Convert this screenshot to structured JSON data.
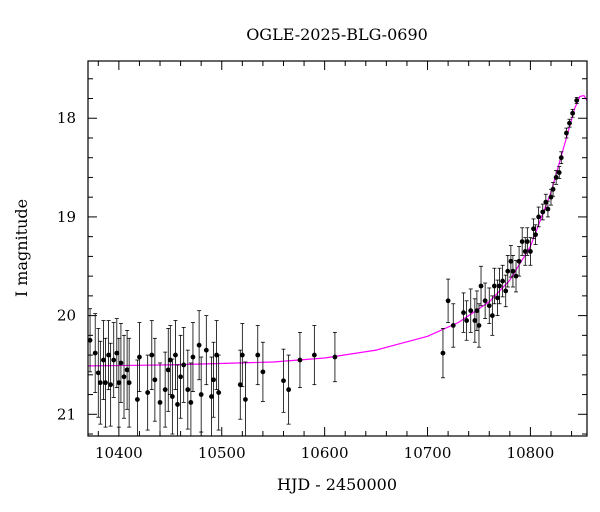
{
  "chart_data": {
    "type": "scatter",
    "title": "OGLE-2025-BLG-0690",
    "xlabel": "HJD - 2450000",
    "ylabel": "I magnitude",
    "xlim": [
      10370,
      10855
    ],
    "ylim": [
      21.22,
      17.42
    ],
    "y_inverted": true,
    "grid": false,
    "legend": "none",
    "x_ticks": [
      10400,
      10500,
      10600,
      10700,
      10800
    ],
    "y_ticks": [
      18,
      19,
      20,
      21
    ],
    "colors": {
      "points": "#000000",
      "model": "#ff00ff"
    },
    "series": [
      {
        "type": "scatter",
        "points": [
          {
            "x": 10372,
            "y": 20.25,
            "err": 0.32
          },
          {
            "x": 10377,
            "y": 20.38,
            "err": 0.4
          },
          {
            "x": 10380,
            "y": 20.58,
            "err": 0.45
          },
          {
            "x": 10382,
            "y": 20.68,
            "err": 0.42
          },
          {
            "x": 10385,
            "y": 20.45,
            "err": 0.4
          },
          {
            "x": 10387,
            "y": 20.68,
            "err": 0.45
          },
          {
            "x": 10390,
            "y": 20.4,
            "err": 0.35
          },
          {
            "x": 10392,
            "y": 20.7,
            "err": 0.42
          },
          {
            "x": 10395,
            "y": 20.45,
            "err": 0.38
          },
          {
            "x": 10398,
            "y": 20.38,
            "err": 0.35
          },
          {
            "x": 10400,
            "y": 20.68,
            "err": 0.45
          },
          {
            "x": 10402,
            "y": 20.48,
            "err": 0.4
          },
          {
            "x": 10405,
            "y": 20.62,
            "err": 0.42
          },
          {
            "x": 10408,
            "y": 20.55,
            "err": 0.4
          },
          {
            "x": 10410,
            "y": 20.68,
            "err": 0.45
          },
          {
            "x": 10418,
            "y": 20.85,
            "err": 0.4
          },
          {
            "x": 10420,
            "y": 20.42,
            "err": 0.35
          },
          {
            "x": 10428,
            "y": 20.78,
            "err": 0.38
          },
          {
            "x": 10432,
            "y": 20.4,
            "err": 0.35
          },
          {
            "x": 10435,
            "y": 20.65,
            "err": 0.42
          },
          {
            "x": 10440,
            "y": 20.88,
            "err": 0.4
          },
          {
            "x": 10445,
            "y": 20.75,
            "err": 0.38
          },
          {
            "x": 10448,
            "y": 20.55,
            "err": 0.42
          },
          {
            "x": 10450,
            "y": 20.45,
            "err": 0.35
          },
          {
            "x": 10452,
            "y": 20.82,
            "err": 0.38
          },
          {
            "x": 10455,
            "y": 20.4,
            "err": 0.35
          },
          {
            "x": 10457,
            "y": 20.9,
            "err": 0.4
          },
          {
            "x": 10460,
            "y": 20.62,
            "err": 0.42
          },
          {
            "x": 10463,
            "y": 20.5,
            "err": 0.38
          },
          {
            "x": 10467,
            "y": 20.75,
            "err": 0.4
          },
          {
            "x": 10470,
            "y": 20.88,
            "err": 0.4
          },
          {
            "x": 10472,
            "y": 20.42,
            "err": 0.35
          },
          {
            "x": 10478,
            "y": 20.3,
            "err": 0.35
          },
          {
            "x": 10480,
            "y": 20.8,
            "err": 0.38
          },
          {
            "x": 10485,
            "y": 20.35,
            "err": 0.35
          },
          {
            "x": 10490,
            "y": 20.82,
            "err": 0.4
          },
          {
            "x": 10492,
            "y": 20.65,
            "err": 0.38
          },
          {
            "x": 10495,
            "y": 20.4,
            "err": 0.35
          },
          {
            "x": 10497,
            "y": 20.78,
            "err": 0.38
          },
          {
            "x": 10518,
            "y": 20.7,
            "err": 0.35
          },
          {
            "x": 10520,
            "y": 20.4,
            "err": 0.32
          },
          {
            "x": 10523,
            "y": 20.85,
            "err": 0.38
          },
          {
            "x": 10535,
            "y": 20.4,
            "err": 0.3
          },
          {
            "x": 10540,
            "y": 20.57,
            "err": 0.3
          },
          {
            "x": 10560,
            "y": 20.66,
            "err": 0.32
          },
          {
            "x": 10565,
            "y": 20.75,
            "err": 0.35
          },
          {
            "x": 10576,
            "y": 20.45,
            "err": 0.28
          },
          {
            "x": 10590,
            "y": 20.4,
            "err": 0.3
          },
          {
            "x": 10610,
            "y": 20.42,
            "err": 0.25
          },
          {
            "x": 10715,
            "y": 20.38,
            "err": 0.25
          },
          {
            "x": 10720,
            "y": 19.85,
            "err": 0.22
          },
          {
            "x": 10725,
            "y": 20.1,
            "err": 0.22
          },
          {
            "x": 10735,
            "y": 19.97,
            "err": 0.2
          },
          {
            "x": 10738,
            "y": 20.05,
            "err": 0.2
          },
          {
            "x": 10742,
            "y": 19.95,
            "err": 0.22
          },
          {
            "x": 10746,
            "y": 20.05,
            "err": 0.22
          },
          {
            "x": 10748,
            "y": 19.95,
            "err": 0.2
          },
          {
            "x": 10750,
            "y": 20.1,
            "err": 0.22
          },
          {
            "x": 10752,
            "y": 19.7,
            "err": 0.2
          },
          {
            "x": 10756,
            "y": 19.85,
            "err": 0.18
          },
          {
            "x": 10760,
            "y": 19.9,
            "err": 0.18
          },
          {
            "x": 10763,
            "y": 20.0,
            "err": 0.2
          },
          {
            "x": 10765,
            "y": 19.7,
            "err": 0.18
          },
          {
            "x": 10768,
            "y": 19.82,
            "err": 0.18
          },
          {
            "x": 10770,
            "y": 19.7,
            "err": 0.18
          },
          {
            "x": 10773,
            "y": 19.65,
            "err": 0.16
          },
          {
            "x": 10776,
            "y": 19.75,
            "err": 0.16
          },
          {
            "x": 10778,
            "y": 19.55,
            "err": 0.16
          },
          {
            "x": 10781,
            "y": 19.45,
            "err": 0.16
          },
          {
            "x": 10783,
            "y": 19.55,
            "err": 0.16
          },
          {
            "x": 10786,
            "y": 19.6,
            "err": 0.16
          },
          {
            "x": 10789,
            "y": 19.45,
            "err": 0.15
          },
          {
            "x": 10792,
            "y": 19.25,
            "err": 0.14
          },
          {
            "x": 10795,
            "y": 19.35,
            "err": 0.14
          },
          {
            "x": 10797,
            "y": 19.25,
            "err": 0.14
          },
          {
            "x": 10800,
            "y": 19.35,
            "err": 0.14
          },
          {
            "x": 10803,
            "y": 19.12,
            "err": 0.1
          },
          {
            "x": 10805,
            "y": 19.18,
            "err": 0.1
          },
          {
            "x": 10808,
            "y": 19.0,
            "err": 0.1
          },
          {
            "x": 10812,
            "y": 18.95,
            "err": 0.08
          },
          {
            "x": 10815,
            "y": 18.85,
            "err": 0.08
          },
          {
            "x": 10817,
            "y": 18.92,
            "err": 0.08
          },
          {
            "x": 10820,
            "y": 18.8,
            "err": 0.08
          },
          {
            "x": 10822,
            "y": 18.72,
            "err": 0.07
          },
          {
            "x": 10825,
            "y": 18.6,
            "err": 0.07
          },
          {
            "x": 10828,
            "y": 18.55,
            "err": 0.06
          },
          {
            "x": 10830,
            "y": 18.4,
            "err": 0.06
          },
          {
            "x": 10835,
            "y": 18.15,
            "err": 0.05
          },
          {
            "x": 10838,
            "y": 18.05,
            "err": 0.04
          },
          {
            "x": 10841,
            "y": 17.95,
            "err": 0.04
          },
          {
            "x": 10845,
            "y": 17.82,
            "err": 0.03
          }
        ]
      },
      {
        "type": "line",
        "points": [
          {
            "x": 10370,
            "y": 20.51
          },
          {
            "x": 10450,
            "y": 20.5
          },
          {
            "x": 10550,
            "y": 20.47
          },
          {
            "x": 10600,
            "y": 20.43
          },
          {
            "x": 10650,
            "y": 20.35
          },
          {
            "x": 10700,
            "y": 20.21
          },
          {
            "x": 10730,
            "y": 20.07
          },
          {
            "x": 10760,
            "y": 19.86
          },
          {
            "x": 10780,
            "y": 19.64
          },
          {
            "x": 10800,
            "y": 19.3
          },
          {
            "x": 10820,
            "y": 18.75
          },
          {
            "x": 10835,
            "y": 18.2
          },
          {
            "x": 10843,
            "y": 17.9
          },
          {
            "x": 10848,
            "y": 17.78
          },
          {
            "x": 10852,
            "y": 17.77
          },
          {
            "x": 10855,
            "y": 17.82
          }
        ]
      }
    ]
  }
}
